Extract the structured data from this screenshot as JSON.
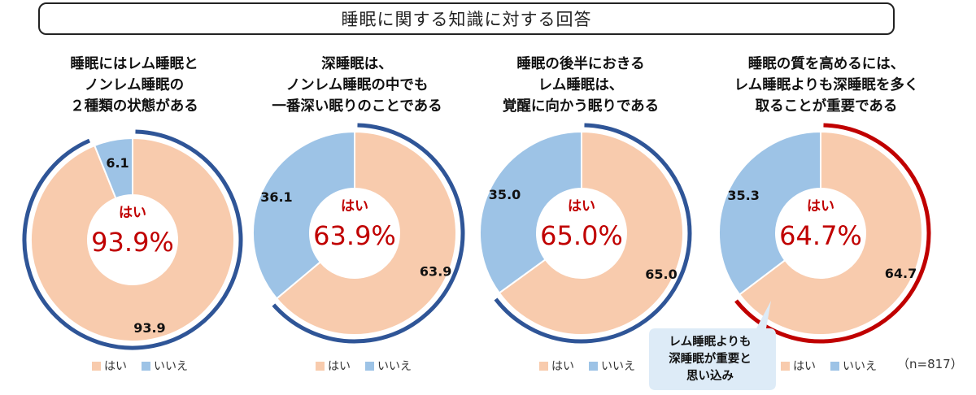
{
  "title": "睡眠に関する知識に対する回答",
  "sample_note": "（n=817）",
  "legend": {
    "yes": "はい",
    "no": "いいえ"
  },
  "callout": {
    "lines": [
      "レム睡眠よりも",
      "深睡眠が重要と",
      "思い込み"
    ]
  },
  "colors": {
    "yes": "#F8CBAD",
    "no": "#9DC3E6",
    "ring_blue": "#2F5597",
    "ring_red": "#C00000",
    "center_text": "#C00000",
    "callout_bg": "#DDEBF7"
  },
  "center_label": "はい",
  "chart_data": [
    {
      "type": "pie",
      "title_lines": [
        "睡眠にはレム睡眠と",
        "ノンレム睡眠の",
        "２種類の状態がある"
      ],
      "categories": [
        "はい",
        "いいえ"
      ],
      "values": [
        93.9,
        6.1
      ],
      "value_labels": [
        "93.9",
        "6.1"
      ],
      "center_value": "93.9%",
      "highlight": "yes",
      "highlight_color": "ring_blue"
    },
    {
      "type": "pie",
      "title_lines": [
        "深睡眠は、",
        "ノンレム睡眠の中でも",
        "一番深い眠りのことである"
      ],
      "categories": [
        "はい",
        "いいえ"
      ],
      "values": [
        63.9,
        36.1
      ],
      "value_labels": [
        "63.9",
        "36.1"
      ],
      "center_value": "63.9%",
      "highlight": "yes",
      "highlight_color": "ring_blue"
    },
    {
      "type": "pie",
      "title_lines": [
        "睡眠の後半におきる",
        "レム睡眠は、",
        "覚醒に向かう眠りである"
      ],
      "categories": [
        "はい",
        "いいえ"
      ],
      "values": [
        65.0,
        35.0
      ],
      "value_labels": [
        "65.0",
        "35.0"
      ],
      "center_value": "65.0%",
      "highlight": "yes",
      "highlight_color": "ring_blue"
    },
    {
      "type": "pie",
      "title_lines": [
        "睡眠の質を高めるには、",
        "レム睡眠よりも深睡眠を多く",
        "取ることが重要である"
      ],
      "categories": [
        "はい",
        "いいえ"
      ],
      "values": [
        64.7,
        35.3
      ],
      "value_labels": [
        "64.7",
        "35.3"
      ],
      "center_value": "64.7%",
      "highlight": "yes",
      "highlight_color": "ring_red"
    }
  ]
}
